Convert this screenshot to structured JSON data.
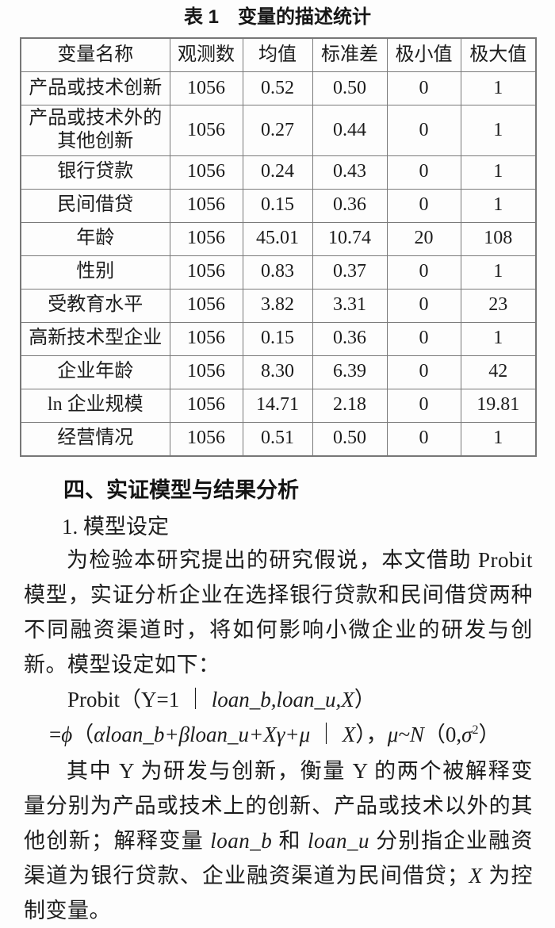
{
  "page": {
    "background": "#fdfdfd",
    "text_color": "#1c1c1c",
    "table_border_color": "#7a7a7a"
  },
  "table": {
    "title": "表 1　变量的描述统计",
    "headers": [
      "变量名称",
      "观测数",
      "均值",
      "标准差",
      "极小值",
      "极大值"
    ],
    "rows": [
      {
        "name": "产品或技术创新",
        "obs": "1056",
        "mean": "0.52",
        "std": "0.50",
        "min": "0",
        "max": "1"
      },
      {
        "name": "产品或技术外的\n其他创新",
        "obs": "1056",
        "mean": "0.27",
        "std": "0.44",
        "min": "0",
        "max": "1"
      },
      {
        "name": "银行贷款",
        "obs": "1056",
        "mean": "0.24",
        "std": "0.43",
        "min": "0",
        "max": "1"
      },
      {
        "name": "民间借贷",
        "obs": "1056",
        "mean": "0.15",
        "std": "0.36",
        "min": "0",
        "max": "1"
      },
      {
        "name": "年龄",
        "obs": "1056",
        "mean": "45.01",
        "std": "10.74",
        "min": "20",
        "max": "108"
      },
      {
        "name": "性别",
        "obs": "1056",
        "mean": "0.83",
        "std": "0.37",
        "min": "0",
        "max": "1"
      },
      {
        "name": "受教育水平",
        "obs": "1056",
        "mean": "3.82",
        "std": "3.31",
        "min": "0",
        "max": "23"
      },
      {
        "name": "高新技术型企业",
        "obs": "1056",
        "mean": "0.15",
        "std": "0.36",
        "min": "0",
        "max": "1"
      },
      {
        "name": "企业年龄",
        "obs": "1056",
        "mean": "8.30",
        "std": "6.39",
        "min": "0",
        "max": "42"
      },
      {
        "name": "ln 企业规模",
        "obs": "1056",
        "mean": "14.71",
        "std": "2.18",
        "min": "0",
        "max": "19.81"
      },
      {
        "name": "经营情况",
        "obs": "1056",
        "mean": "0.51",
        "std": "0.50",
        "min": "0",
        "max": "1"
      }
    ]
  },
  "section": {
    "heading": "四、实证模型与结果分析",
    "subheading": "1. 模型设定"
  },
  "paragraphs": {
    "intro": "为检验本研究提出的研究假说，本文借助 Probit 模型，实证分析企业在选择银行贷款和民间借贷两种不同融资渠道时，将如何影响小微企业的研发与创新。模型设定如下：",
    "explain": {
      "s1": "其中 Y 为研发与创新，衡量 Y 的两个被解释变量分别为产品或技术上的创新、产品或技术以外的其他创新；解释变量 ",
      "s2": "loan_b",
      "s3": " 和 ",
      "s4": "loan_u",
      "s5": " 分别指企业融资渠道为银行贷款、企业融资渠道为民间借贷；",
      "s6": "X",
      "s7": " 为控制变量。"
    }
  },
  "formulas": {
    "line1": {
      "fn": "Probit（Y=1 ｜ ",
      "vars": "loan_b,loan_u,X",
      "close": "）"
    },
    "line2": {
      "eq": "=",
      "phi": "ϕ",
      "open": "（",
      "terms": "αloan_b+βloan_u+Xγ+μ",
      "bar": " ｜ ",
      "x": "X",
      "close": "），",
      "mu": "μ~N",
      "open2": "（0,",
      "sigma": "σ",
      "sup": "2",
      "close2": "）"
    }
  }
}
